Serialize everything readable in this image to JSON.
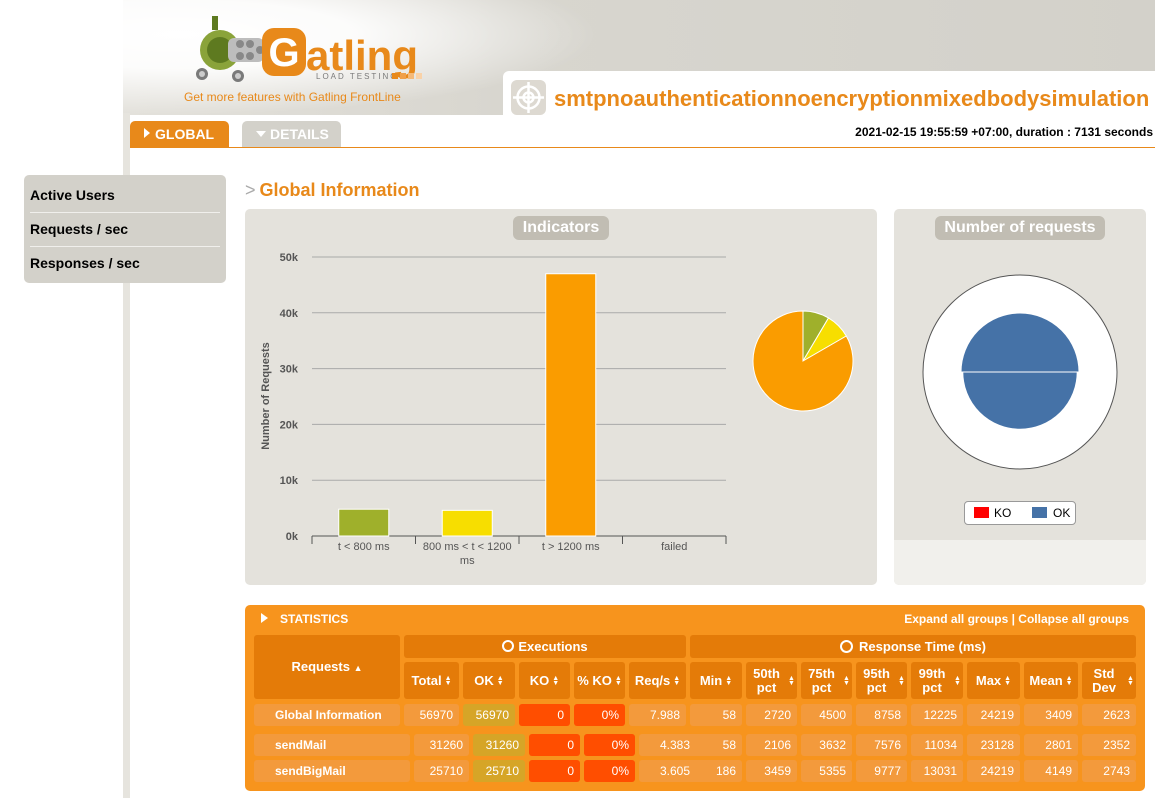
{
  "header": {
    "logo_text": "Gatling",
    "logo_subtext": "LOAD TESTING",
    "frontline_link": "Get more features with Gatling FrontLine",
    "simulation_title": "smtpnoauthenticationnoencryptionmixedbodysimulation",
    "run_info": "2021-02-15 19:55:59 +07:00, duration : 7131 seconds"
  },
  "tabs": {
    "global": "GLOBAL",
    "details": "DETAILS"
  },
  "sidemenu": [
    "Active Users",
    "Requests / sec",
    "Responses / sec"
  ],
  "section_title": "Global Information",
  "indicators": {
    "title": "Indicators",
    "colors": {
      "lt800": "#9fb02b",
      "mid": "#f7de00",
      "gt1200": "#fa9c00",
      "failed": "#ff0000"
    },
    "chart_data": {
      "type": "bar",
      "ylabel": "Number of Requests",
      "categories": [
        "t < 800 ms",
        "800 ms < t < 1200 ms",
        "t > 1200 ms",
        "failed"
      ],
      "values": [
        4800,
        4600,
        47000,
        0
      ],
      "ylim": [
        0,
        50000
      ],
      "yticks": [
        "0k",
        "10k",
        "20k",
        "30k",
        "40k",
        "50k"
      ],
      "grid": true
    },
    "pie_data": {
      "type": "pie",
      "values": [
        4800,
        4600,
        47000,
        0
      ]
    }
  },
  "requests_chart": {
    "title": "Number of requests",
    "legend": [
      {
        "label": "KO",
        "color": "#ff0000"
      },
      {
        "label": "OK",
        "color": "#4572a7"
      }
    ],
    "chart_data": {
      "type": "pie",
      "categories": [
        "sendMail",
        "sendBigMail"
      ],
      "values": [
        31260,
        25710
      ]
    }
  },
  "statistics": {
    "title": "STATISTICS",
    "expand": "Expand all groups",
    "separator": "|",
    "collapse": "Collapse all groups",
    "group_requests": "Requests",
    "group_executions": "Executions",
    "group_response": "Response Time (ms)",
    "columns": [
      "Total",
      "OK",
      "KO",
      "% KO",
      "Req/s",
      "Min",
      "50th pct",
      "75th pct",
      "95th pct",
      "99th pct",
      "Max",
      "Mean",
      "Std Dev"
    ],
    "rows": [
      {
        "name": "Global Information",
        "values": [
          "56970",
          "56970",
          "0",
          "0%",
          "7.988",
          "58",
          "2720",
          "4500",
          "8758",
          "12225",
          "24219",
          "3409",
          "2623"
        ]
      },
      {
        "name": "sendMail",
        "values": [
          "31260",
          "31260",
          "0",
          "0%",
          "4.383",
          "58",
          "2106",
          "3632",
          "7576",
          "11034",
          "23128",
          "2801",
          "2352"
        ]
      },
      {
        "name": "sendBigMail",
        "values": [
          "25710",
          "25710",
          "0",
          "0%",
          "3.605",
          "186",
          "3459",
          "5355",
          "9777",
          "13031",
          "24219",
          "4149",
          "2743"
        ]
      }
    ]
  }
}
